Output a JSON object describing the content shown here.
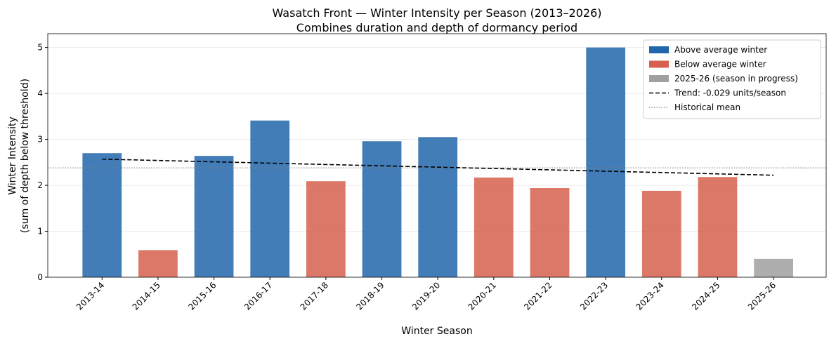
{
  "chart_data": {
    "type": "bar",
    "title": "Wasatch Front — Winter Intensity per Season (2013–2026)",
    "subtitle": "Combines duration and depth of dormancy period",
    "xlabel": "Winter Season",
    "ylabel": [
      "Winter Intensity",
      "(sum of depth below threshold)"
    ],
    "categories": [
      "2013-14",
      "2014-15",
      "2015-16",
      "2016-17",
      "2017-18",
      "2018-19",
      "2019-20",
      "2020-21",
      "2021-22",
      "2022-23",
      "2023-24",
      "2024-25",
      "2025-26"
    ],
    "series": [
      {
        "name": "Above average winter",
        "color": "#2166ac",
        "values": [
          2.7,
          null,
          2.64,
          3.41,
          null,
          2.96,
          3.05,
          null,
          null,
          5.0,
          null,
          null,
          null
        ]
      },
      {
        "name": "Below average winter",
        "color": "#d6604d",
        "values": [
          null,
          0.59,
          null,
          null,
          2.09,
          null,
          null,
          2.17,
          1.94,
          null,
          1.88,
          2.18,
          null
        ]
      },
      {
        "name": "2025-26 (season in progress)",
        "color": "#a0a0a0",
        "values": [
          null,
          null,
          null,
          null,
          null,
          null,
          null,
          null,
          null,
          null,
          null,
          null,
          0.4
        ]
      }
    ],
    "trend": {
      "name": "Trend: -0.029 units/season",
      "color": "#000000",
      "x": [
        "2013-14",
        "2025-26"
      ],
      "values": [
        2.57,
        2.22
      ]
    },
    "mean": {
      "name": "Historical mean",
      "color": "#808080",
      "value": 2.38
    },
    "ylim": [
      0,
      5.3
    ],
    "yticks": [
      0,
      1,
      2,
      3,
      4,
      5
    ],
    "grid": true,
    "legend": "upper right"
  }
}
